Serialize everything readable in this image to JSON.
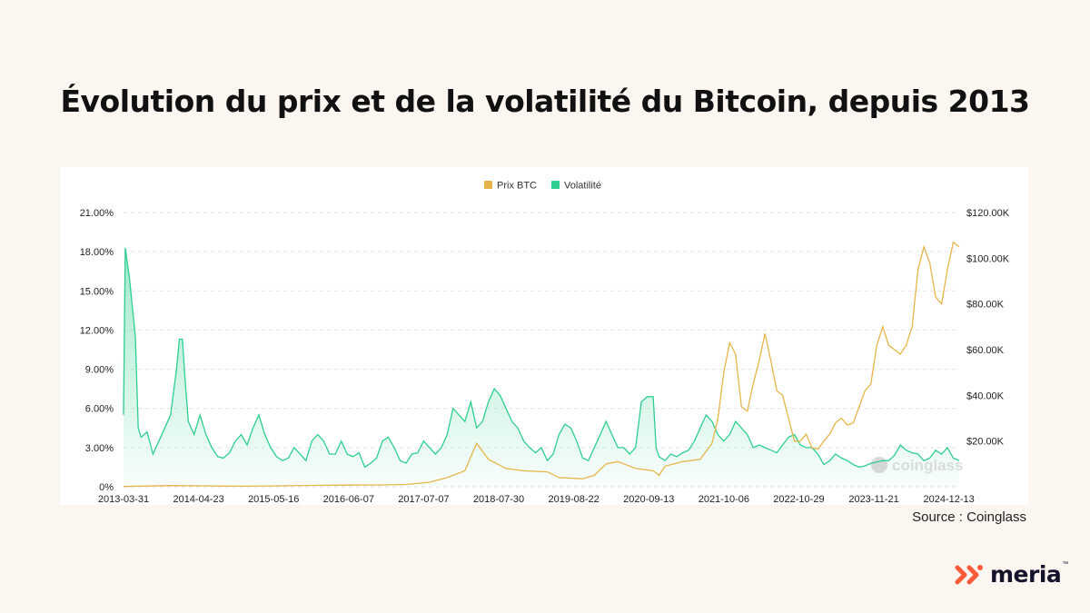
{
  "title": "Évolution du prix et de la volatilité du Bitcoin, depuis 2013",
  "source": "Source : Coinglass",
  "brand": {
    "name": "meria",
    "tm": "™",
    "color": "#ff5b3a"
  },
  "watermark": "coinglass",
  "colors": {
    "price": "#e6b54a",
    "volatility": "#2ecf8f",
    "grid": "#e3e3e3"
  },
  "chart_data": {
    "type": "line",
    "title": "Évolution du prix et de la volatilité du Bitcoin, depuis 2013",
    "legend": [
      "Prix BTC",
      "Volatilité"
    ],
    "legend_position": "top-center",
    "grid": true,
    "x_tick_labels": [
      "2013-03-31",
      "2014-04-23",
      "2015-05-16",
      "2016-06-07",
      "2017-07-07",
      "2018-07-30",
      "2019-08-22",
      "2020-09-13",
      "2021-10-06",
      "2022-10-29",
      "2023-11-21",
      "2024-12-13"
    ],
    "x_range": [
      0,
      142
    ],
    "left_axis": {
      "label": "Volatilité",
      "unit": "%",
      "range": [
        0,
        21
      ],
      "ticks": [
        "0%",
        "3.00%",
        "6.00%",
        "9.00%",
        "12.00%",
        "15.00%",
        "18.00%",
        "21.00%"
      ]
    },
    "right_axis": {
      "label": "Prix BTC",
      "unit": "USD",
      "range": [
        0,
        120000
      ],
      "ticks": [
        "$20.00K",
        "$40.00K",
        "$60.00K",
        "$80.00K",
        "$100.00K",
        "$120.00K"
      ]
    },
    "x_unit": "months since 2013-03",
    "series": [
      {
        "name": "Volatilité",
        "axis": "left",
        "points": [
          [
            0,
            5.5
          ],
          [
            0.3,
            18.3
          ],
          [
            1,
            16
          ],
          [
            2,
            11.5
          ],
          [
            2.5,
            4.5
          ],
          [
            3,
            3.8
          ],
          [
            4,
            4.2
          ],
          [
            5,
            2.5
          ],
          [
            6,
            3.5
          ],
          [
            7,
            4.5
          ],
          [
            8,
            5.5
          ],
          [
            9,
            9
          ],
          [
            9.5,
            11.3
          ],
          [
            10,
            11.3
          ],
          [
            10.5,
            8
          ],
          [
            11,
            5
          ],
          [
            12,
            4
          ],
          [
            13,
            5.5
          ],
          [
            14,
            4
          ],
          [
            15,
            3
          ],
          [
            16,
            2.3
          ],
          [
            17,
            2.2
          ],
          [
            18,
            2.6
          ],
          [
            19,
            3.5
          ],
          [
            20,
            4
          ],
          [
            21,
            3.2
          ],
          [
            22,
            4.5
          ],
          [
            23,
            5.5
          ],
          [
            24,
            4
          ],
          [
            25,
            3
          ],
          [
            26,
            2.3
          ],
          [
            27,
            2
          ],
          [
            28,
            2.2
          ],
          [
            29,
            3
          ],
          [
            30,
            2.5
          ],
          [
            31,
            2
          ],
          [
            32,
            3.5
          ],
          [
            33,
            4
          ],
          [
            34,
            3.5
          ],
          [
            35,
            2.5
          ],
          [
            36,
            2.5
          ],
          [
            37,
            3.5
          ],
          [
            38,
            2.5
          ],
          [
            39,
            2.3
          ],
          [
            40,
            2.6
          ],
          [
            41,
            1.5
          ],
          [
            42,
            1.8
          ],
          [
            43,
            2.2
          ],
          [
            44,
            3.5
          ],
          [
            45,
            3.8
          ],
          [
            46,
            3
          ],
          [
            47,
            2
          ],
          [
            48,
            1.8
          ],
          [
            49,
            2.5
          ],
          [
            50,
            2.6
          ],
          [
            51,
            3.5
          ],
          [
            52,
            3
          ],
          [
            53,
            2.5
          ],
          [
            54,
            3
          ],
          [
            55,
            4
          ],
          [
            56,
            6
          ],
          [
            57,
            5.5
          ],
          [
            58,
            5
          ],
          [
            59,
            6.5
          ],
          [
            60,
            4.5
          ],
          [
            61,
            5
          ],
          [
            62,
            6.5
          ],
          [
            63,
            7.5
          ],
          [
            64,
            7
          ],
          [
            65,
            6
          ],
          [
            66,
            5
          ],
          [
            67,
            4.5
          ],
          [
            68,
            3.5
          ],
          [
            69,
            3
          ],
          [
            70,
            2.6
          ],
          [
            71,
            3
          ],
          [
            72,
            2
          ],
          [
            73,
            2.5
          ],
          [
            74,
            4
          ],
          [
            75,
            4.8
          ],
          [
            76,
            4.5
          ],
          [
            77,
            3.5
          ],
          [
            78,
            2.2
          ],
          [
            79,
            2
          ],
          [
            80,
            3
          ],
          [
            81,
            4
          ],
          [
            82,
            5
          ],
          [
            83,
            4
          ],
          [
            84,
            3
          ],
          [
            85,
            3
          ],
          [
            86,
            2.5
          ],
          [
            87,
            3
          ],
          [
            88,
            6.5
          ],
          [
            89,
            6.9
          ],
          [
            90,
            6.9
          ],
          [
            90.5,
            3
          ],
          [
            91,
            2.3
          ],
          [
            92,
            2
          ],
          [
            93,
            2.5
          ],
          [
            94,
            2.3
          ],
          [
            95,
            2.6
          ],
          [
            96,
            2.8
          ],
          [
            97,
            3.5
          ],
          [
            98,
            4.5
          ],
          [
            99,
            5.5
          ],
          [
            100,
            5
          ],
          [
            101,
            4
          ],
          [
            102,
            3.5
          ],
          [
            103,
            4
          ],
          [
            104,
            5
          ],
          [
            105,
            4.5
          ],
          [
            106,
            4
          ],
          [
            107,
            3
          ],
          [
            108,
            3.2
          ],
          [
            109,
            3
          ],
          [
            110,
            2.8
          ],
          [
            111,
            2.6
          ],
          [
            112,
            3.2
          ],
          [
            113,
            3.8
          ],
          [
            114,
            4
          ],
          [
            115,
            3.2
          ],
          [
            116,
            3
          ],
          [
            117,
            3
          ],
          [
            118,
            2.5
          ],
          [
            119,
            1.7
          ],
          [
            120,
            2
          ],
          [
            121,
            2.5
          ],
          [
            122,
            2.2
          ],
          [
            123,
            2
          ],
          [
            124,
            1.7
          ],
          [
            125,
            1.5
          ],
          [
            126,
            1.6
          ],
          [
            127,
            1.8
          ],
          [
            128,
            1.9
          ],
          [
            129,
            2
          ],
          [
            130,
            2
          ],
          [
            131,
            2.4
          ],
          [
            132,
            3.2
          ],
          [
            133,
            2.8
          ],
          [
            134,
            2.6
          ],
          [
            135,
            2.5
          ],
          [
            136,
            2
          ],
          [
            137,
            2.2
          ],
          [
            138,
            2.8
          ],
          [
            139,
            2.5
          ],
          [
            140,
            3
          ],
          [
            141,
            2.2
          ],
          [
            142,
            2
          ]
        ]
      },
      {
        "name": "Prix BTC",
        "axis": "right",
        "points": [
          [
            0,
            100
          ],
          [
            8,
            500
          ],
          [
            14,
            400
          ],
          [
            20,
            250
          ],
          [
            26,
            400
          ],
          [
            32,
            600
          ],
          [
            38,
            700
          ],
          [
            44,
            800
          ],
          [
            48,
            1000
          ],
          [
            52,
            2000
          ],
          [
            55,
            4000
          ],
          [
            58,
            7000
          ],
          [
            60,
            19000
          ],
          [
            62,
            12000
          ],
          [
            65,
            8000
          ],
          [
            68,
            7000
          ],
          [
            72,
            6500
          ],
          [
            74,
            4000
          ],
          [
            78,
            3500
          ],
          [
            80,
            5000
          ],
          [
            82,
            10000
          ],
          [
            84,
            11000
          ],
          [
            87,
            8000
          ],
          [
            90,
            7000
          ],
          [
            91,
            5000
          ],
          [
            92,
            9000
          ],
          [
            95,
            11000
          ],
          [
            98,
            12000
          ],
          [
            100,
            19000
          ],
          [
            101,
            30000
          ],
          [
            102,
            50000
          ],
          [
            103,
            63000
          ],
          [
            104,
            58000
          ],
          [
            105,
            35000
          ],
          [
            106,
            33000
          ],
          [
            107,
            45000
          ],
          [
            108,
            55000
          ],
          [
            109,
            67000
          ],
          [
            110,
            55000
          ],
          [
            111,
            42000
          ],
          [
            112,
            40000
          ],
          [
            113,
            30000
          ],
          [
            114,
            20000
          ],
          [
            115,
            20000
          ],
          [
            116,
            23000
          ],
          [
            117,
            17000
          ],
          [
            118,
            16500
          ],
          [
            119,
            20000
          ],
          [
            120,
            23000
          ],
          [
            121,
            28000
          ],
          [
            122,
            30000
          ],
          [
            123,
            27000
          ],
          [
            124,
            28000
          ],
          [
            125,
            35000
          ],
          [
            126,
            42000
          ],
          [
            127,
            45000
          ],
          [
            128,
            62000
          ],
          [
            129,
            70000
          ],
          [
            130,
            62000
          ],
          [
            131,
            60000
          ],
          [
            132,
            58000
          ],
          [
            133,
            62000
          ],
          [
            134,
            70000
          ],
          [
            135,
            95000
          ],
          [
            136,
            105000
          ],
          [
            137,
            98000
          ],
          [
            138,
            83000
          ],
          [
            139,
            80000
          ],
          [
            140,
            95000
          ],
          [
            141,
            107000
          ],
          [
            142,
            105000
          ]
        ]
      }
    ]
  }
}
